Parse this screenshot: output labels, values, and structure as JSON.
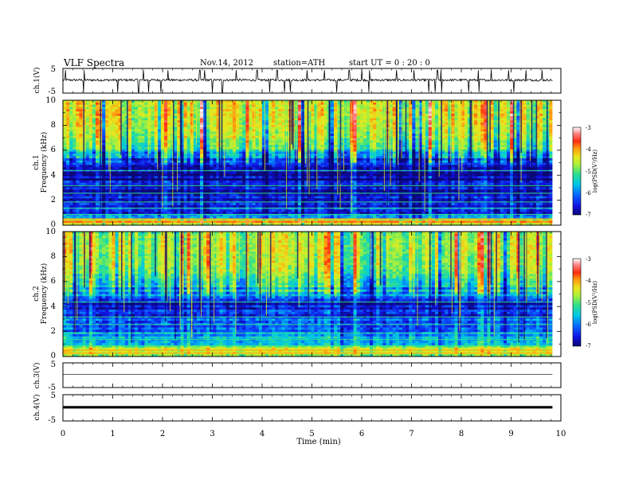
{
  "header": {
    "title": "VLF  Spectra",
    "date": "Nov.14, 2012",
    "station": "station=ATH",
    "start_ut": "start  UT =   0  : 20 : 0"
  },
  "chart_data": [
    {
      "type": "line",
      "panel": "ch1-waveform",
      "ylabel": "ch.1(V)",
      "ylim": [
        -5,
        5
      ],
      "yticks": [
        "5",
        "-5"
      ],
      "xlim": [
        0,
        10
      ],
      "data_end_min": 9.83,
      "baseline_v": 0.3,
      "spike_times_min": [
        0.05,
        0.42,
        1.1,
        1.52,
        1.62,
        1.72,
        1.97,
        2.11,
        2.75,
        2.85,
        3.0,
        3.2,
        3.48,
        3.9,
        4.15,
        4.3,
        4.45,
        4.57,
        4.9,
        5.25,
        5.5,
        5.75,
        6.0,
        6.15,
        6.7,
        7.05,
        7.35,
        7.48,
        7.52,
        7.6,
        8.15,
        8.35,
        8.6,
        8.95,
        9.05,
        9.3,
        9.62
      ]
    },
    {
      "type": "heatmap",
      "panel": "ch1-spectrogram",
      "ylabel_top": "ch.1",
      "ylabel": "Frequency  (kHz)",
      "ylim": [
        0,
        10
      ],
      "yticks": [
        "0",
        "2",
        "4",
        "6",
        "8",
        "10"
      ],
      "xlim": [
        0,
        10
      ],
      "colorbar": {
        "label": "log(PSD(V²/Hz)",
        "range": [
          -7,
          -3
        ],
        "ticks": [
          "-3",
          "-4",
          "-5",
          "-6",
          "-7"
        ]
      },
      "spectral_profile_logpsd": [
        {
          "f_khz": 0.0,
          "v": -4.8
        },
        {
          "f_khz": 0.3,
          "v": -4.2
        },
        {
          "f_khz": 0.6,
          "v": -5.8
        },
        {
          "f_khz": 1.0,
          "v": -6.4
        },
        {
          "f_khz": 2.0,
          "v": -6.5
        },
        {
          "f_khz": 3.0,
          "v": -6.8
        },
        {
          "f_khz": 4.0,
          "v": -6.7
        },
        {
          "f_khz": 5.0,
          "v": -6.4
        },
        {
          "f_khz": 5.6,
          "v": -6.1
        },
        {
          "f_khz": 6.0,
          "v": -5.4
        },
        {
          "f_khz": 7.0,
          "v": -5.0
        },
        {
          "f_khz": 8.0,
          "v": -4.8
        },
        {
          "f_khz": 9.0,
          "v": -4.7
        },
        {
          "f_khz": 10.0,
          "v": -4.8
        }
      ]
    },
    {
      "type": "heatmap",
      "panel": "ch2-spectrogram",
      "ylabel_top": "ch.2",
      "ylabel": "Frequency  (kHz)",
      "ylim": [
        0,
        10
      ],
      "yticks": [
        "0",
        "2",
        "4",
        "6",
        "8",
        "10"
      ],
      "xlim": [
        0,
        10
      ],
      "colorbar": {
        "label": "log(PSD(V²/Hz)",
        "range": [
          -7,
          -3
        ],
        "ticks": [
          "-3",
          "-4",
          "-5",
          "-6",
          "-7"
        ]
      },
      "spectral_profile_logpsd": [
        {
          "f_khz": 0.0,
          "v": -5.0
        },
        {
          "f_khz": 0.5,
          "v": -4.4
        },
        {
          "f_khz": 1.0,
          "v": -6.0
        },
        {
          "f_khz": 2.0,
          "v": -6.0
        },
        {
          "f_khz": 3.0,
          "v": -6.2
        },
        {
          "f_khz": 4.2,
          "v": -6.8
        },
        {
          "f_khz": 5.0,
          "v": -6.0
        },
        {
          "f_khz": 5.6,
          "v": -5.6
        },
        {
          "f_khz": 6.5,
          "v": -5.3
        },
        {
          "f_khz": 7.0,
          "v": -5.1
        },
        {
          "f_khz": 8.0,
          "v": -5.0
        },
        {
          "f_khz": 9.0,
          "v": -4.9
        },
        {
          "f_khz": 10.0,
          "v": -5.1
        }
      ]
    },
    {
      "type": "line",
      "panel": "ch3-waveform",
      "ylabel": "ch.3(V)",
      "ylim": [
        -5,
        5
      ],
      "yticks": [
        "5",
        "-5"
      ],
      "xlim": [
        0,
        10
      ],
      "baseline_v": 0.4
    },
    {
      "type": "line",
      "panel": "ch4-waveform",
      "ylabel": "ch.4(V)",
      "ylim": [
        -5,
        5
      ],
      "yticks": [
        "5",
        "-5"
      ],
      "xlim": [
        0,
        10
      ],
      "baseline_v": 0.2,
      "xlabel": "Time  (min)",
      "xticks": [
        "0",
        "1",
        "2",
        "3",
        "4",
        "5",
        "6",
        "7",
        "8",
        "9",
        "10"
      ]
    }
  ],
  "colors": {
    "colormap": [
      "#0a0870",
      "#1010e0",
      "#0a60ff",
      "#00c8e6",
      "#2ee08c",
      "#a4f03c",
      "#e8e81e",
      "#ff9c10",
      "#ff2a10",
      "#ff8888",
      "#ffffff"
    ],
    "axis": "#000000",
    "trace": "#000000"
  }
}
